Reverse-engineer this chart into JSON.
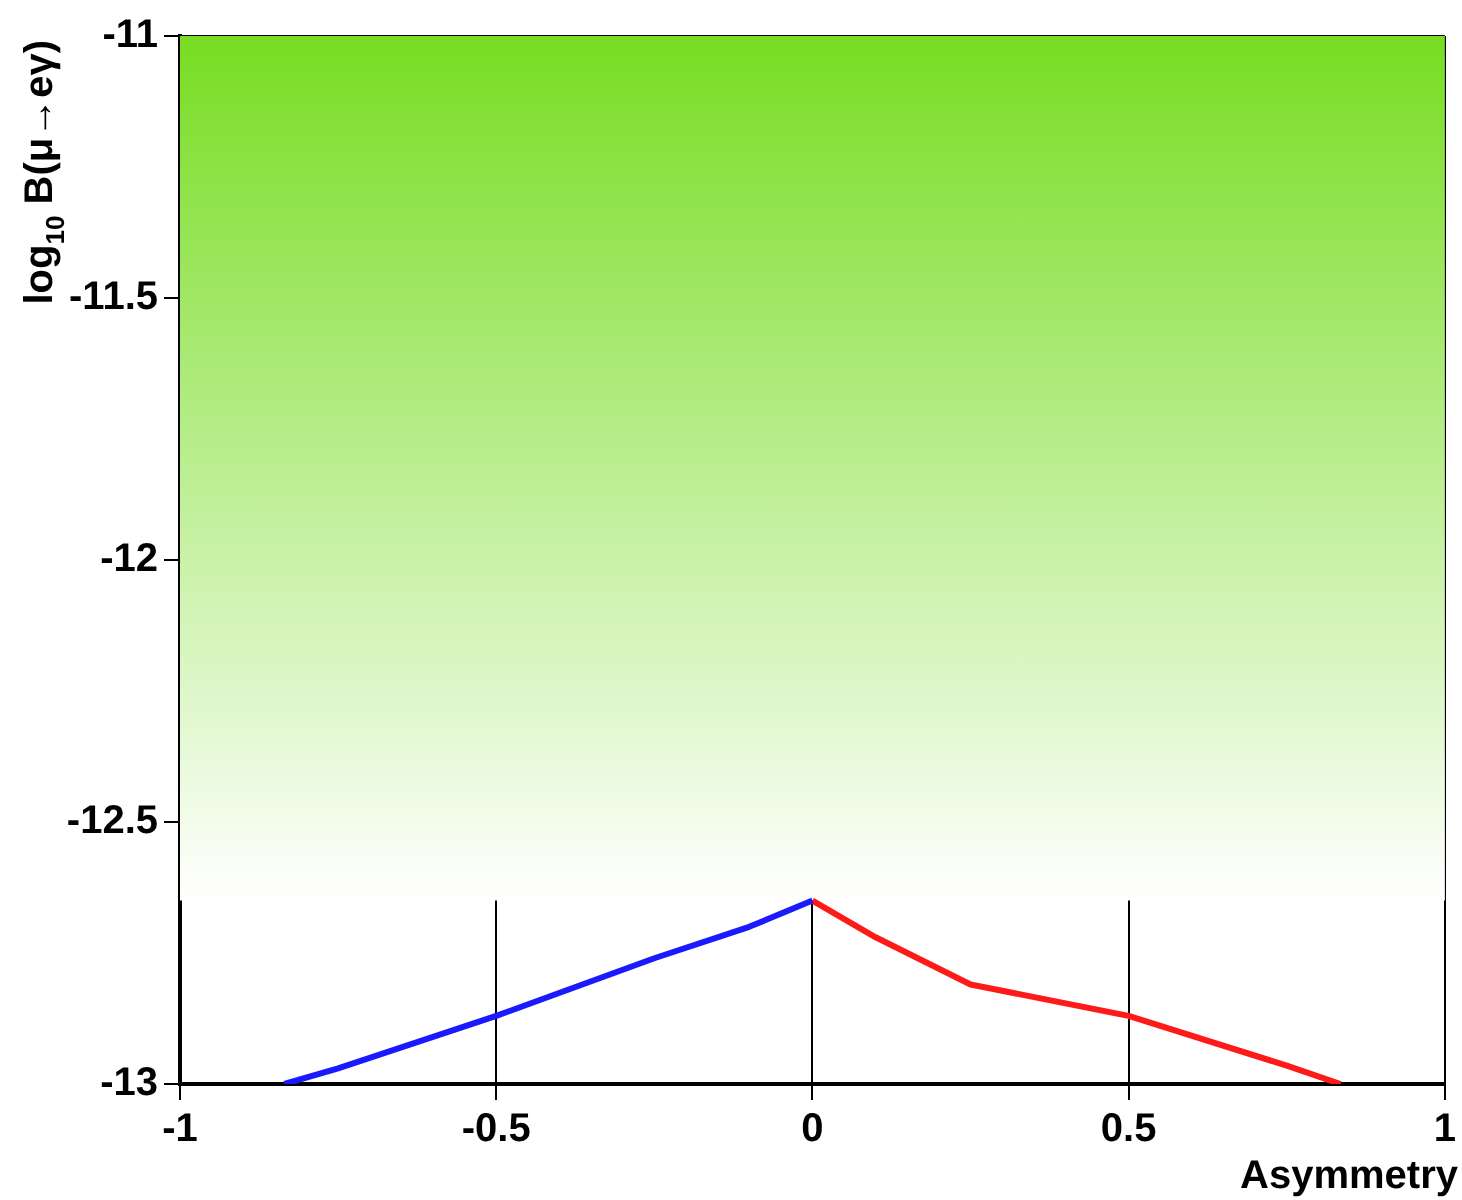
{
  "chart_data": {
    "type": "line",
    "xlabel": "Asymmetry",
    "ylabel": "log$_{10}$ B(μ→eγ)",
    "xlim": [
      -1,
      1
    ],
    "xticks": [
      -1,
      -0.5,
      0,
      0.5,
      1
    ],
    "ylim": [
      -13,
      -11
    ],
    "yticks": [
      -13,
      -12.5,
      -12,
      -11.5,
      -11
    ],
    "grid": true,
    "marker": "none",
    "line_style": "solid",
    "bands": [
      {
        "axis": "y",
        "from": -12.65,
        "to": -11,
        "color": "#77dd22"
      }
    ],
    "series": [
      {
        "color": "#1a1aff",
        "x": [
          -0.835,
          -0.75,
          -0.5,
          -0.25,
          -0.1,
          0
        ],
        "values": [
          -13,
          -12.97,
          -12.87,
          -12.76,
          -12.7,
          -12.65
        ]
      },
      {
        "color": "#ff1a1a",
        "x": [
          0,
          0.1,
          0.25,
          0.5,
          0.75,
          0.835
        ],
        "values": [
          -12.65,
          -12.72,
          -12.81,
          -12.87,
          -12.965,
          -13
        ]
      }
    ]
  }
}
